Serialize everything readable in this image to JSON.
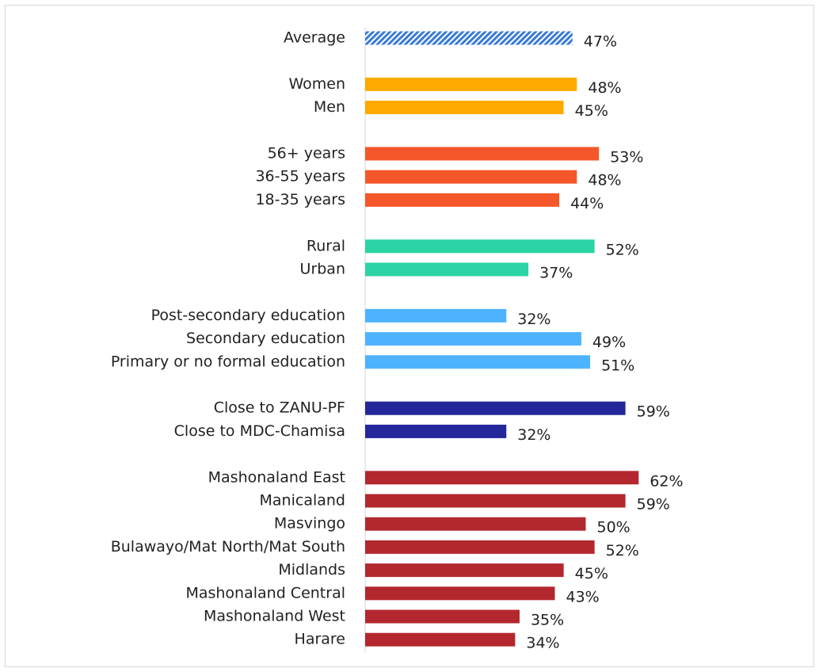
{
  "chart_data": {
    "type": "bar",
    "orientation": "horizontal",
    "categories": [
      "Average",
      "Women",
      "Men",
      "56+ years",
      "36-55 years",
      "18-35 years",
      "Rural",
      "Urban",
      "Post-secondary education",
      "Secondary education",
      "Primary or no formal education",
      "Close to ZANU-PF",
      "Close to MDC-Chamisa",
      "Mashonaland East",
      "Manicaland",
      "Masvingo",
      "Bulawayo/Mat North/Mat South",
      "Midlands",
      "Mashonaland Central",
      "Mashonaland West",
      "Harare"
    ],
    "values": [
      47,
      48,
      45,
      53,
      48,
      44,
      52,
      37,
      32,
      49,
      51,
      59,
      32,
      62,
      59,
      50,
      52,
      45,
      43,
      35,
      34
    ],
    "value_labels": [
      "47%",
      "48%",
      "45%",
      "53%",
      "48%",
      "44%",
      "52%",
      "37%",
      "32%",
      "49%",
      "51%",
      "59%",
      "32%",
      "62%",
      "59%",
      "50%",
      "52%",
      "45%",
      "43%",
      "35%",
      "34%"
    ],
    "colors": [
      "#3a7bd5",
      "#ffaa00",
      "#ffaa00",
      "#f4572a",
      "#f4572a",
      "#f4572a",
      "#2cd3a4",
      "#2cd3a4",
      "#4eb3ff",
      "#4eb3ff",
      "#4eb3ff",
      "#23279a",
      "#23279a",
      "#b3282e",
      "#b3282e",
      "#b3282e",
      "#b3282e",
      "#b3282e",
      "#b3282e",
      "#b3282e",
      "#b3282e"
    ],
    "hatch": [
      true,
      false,
      false,
      false,
      false,
      false,
      false,
      false,
      false,
      false,
      false,
      false,
      false,
      false,
      false,
      false,
      false,
      false,
      false,
      false,
      false
    ],
    "xlim": [
      0,
      100
    ]
  }
}
